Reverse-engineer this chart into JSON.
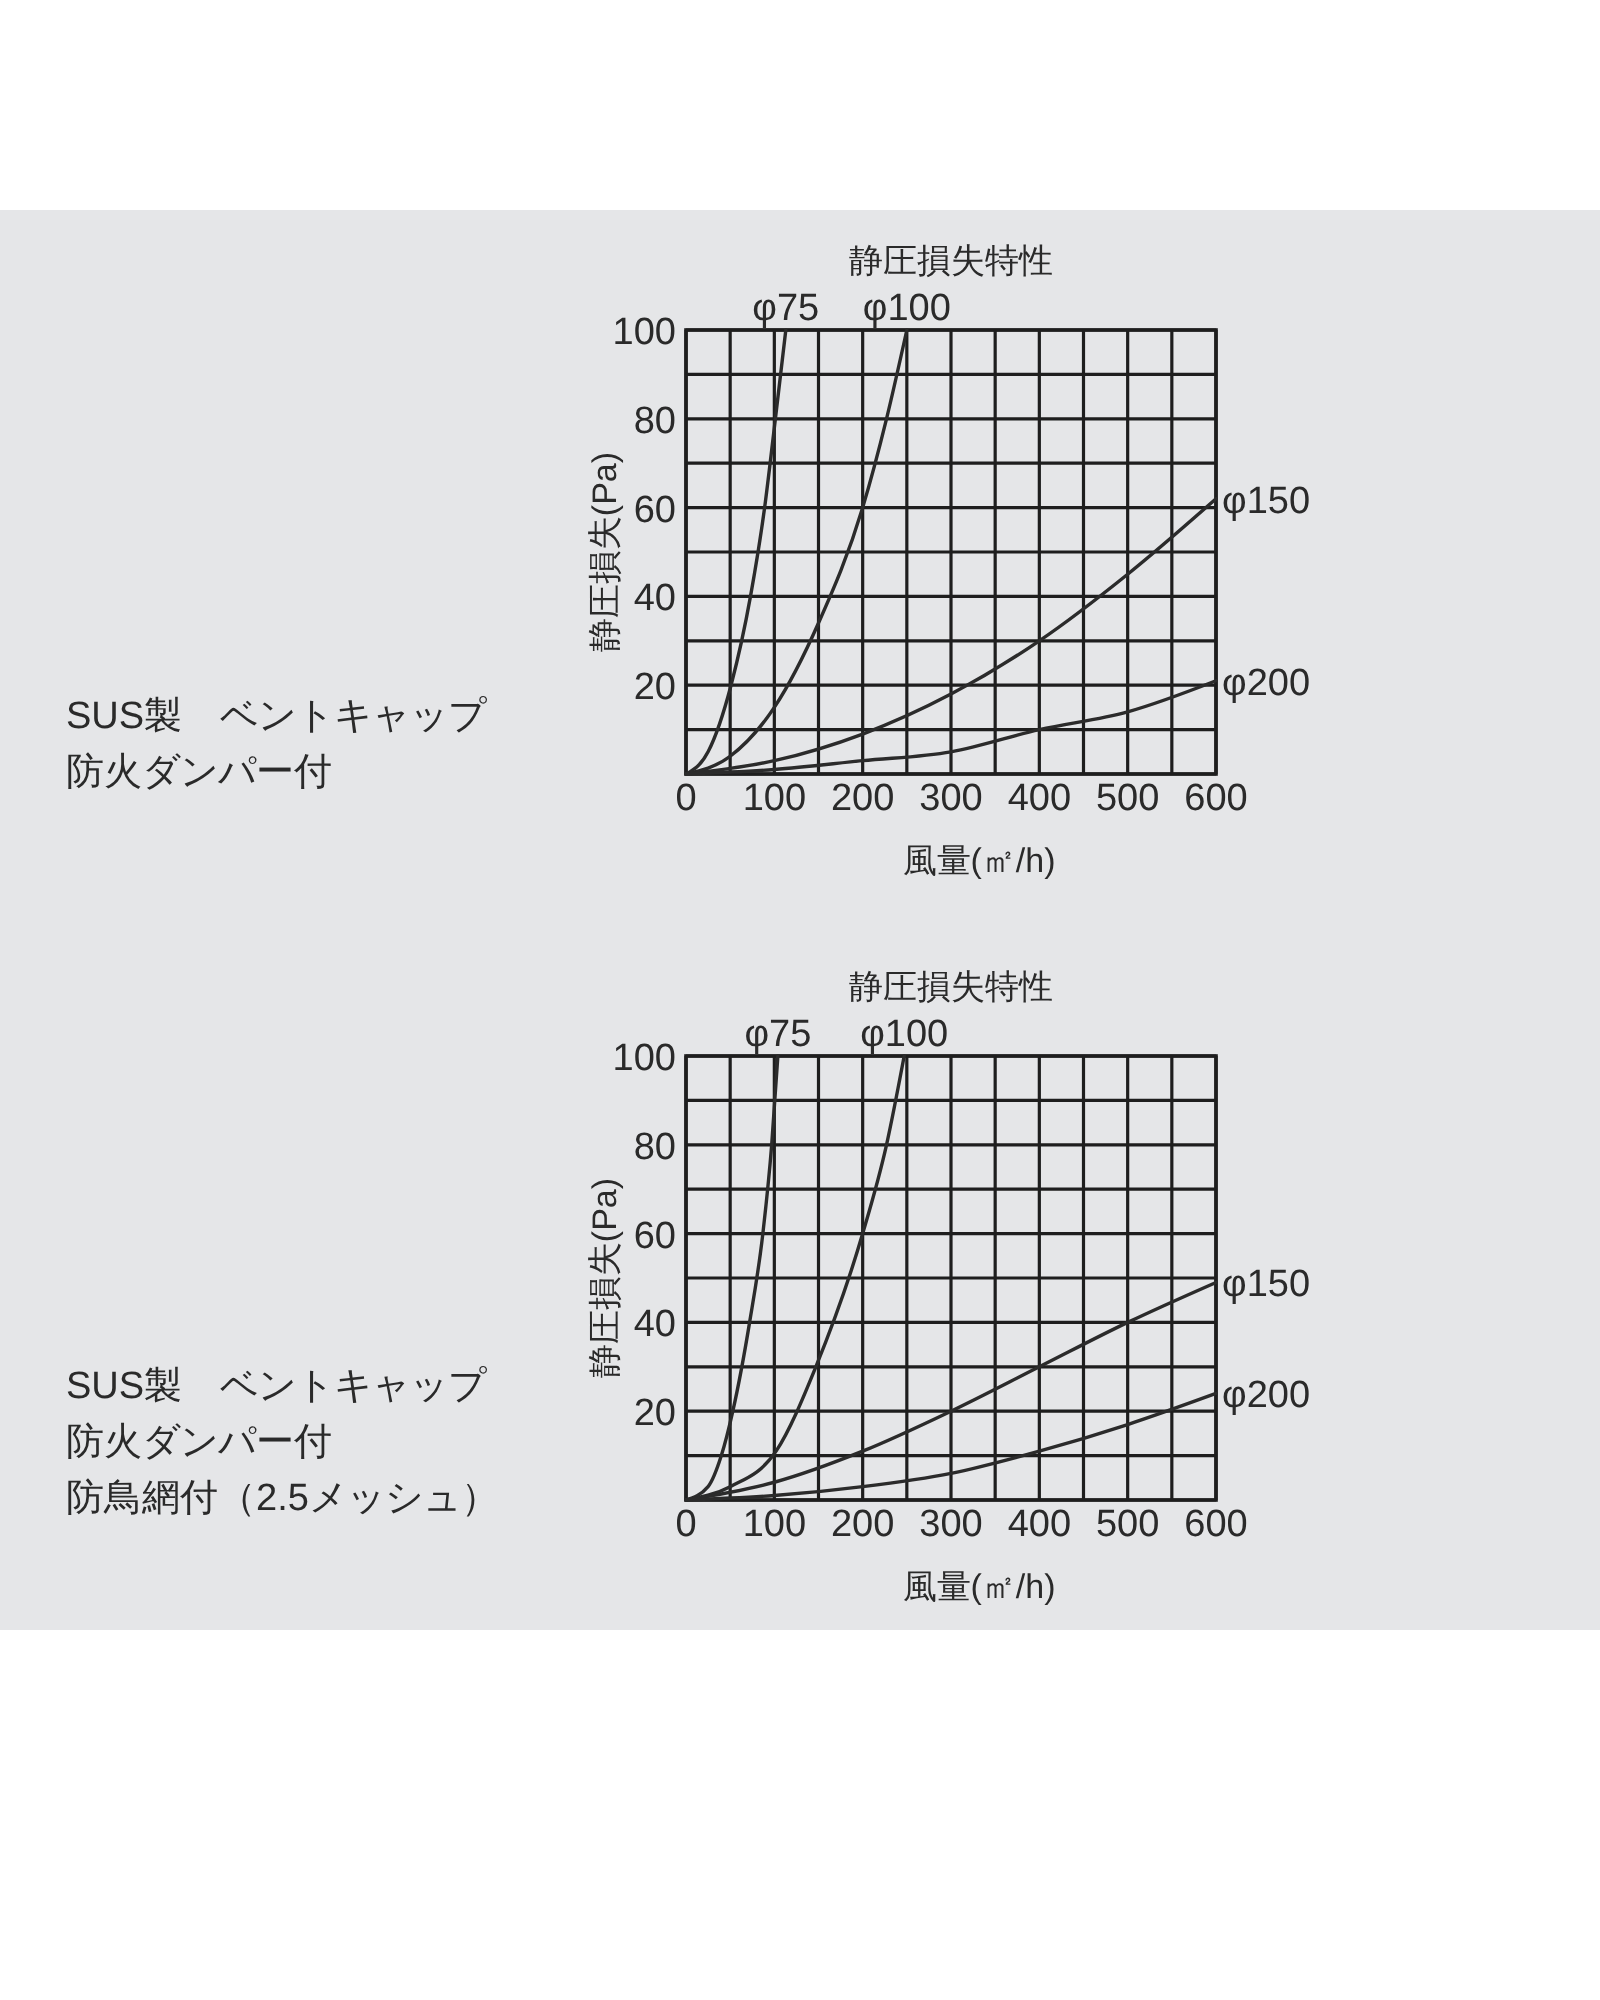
{
  "chart_data": [
    {
      "type": "line",
      "title": "静圧損失特性",
      "xlabel": "風量(㎡/h)",
      "ylabel": "静圧損失(Pa)",
      "annotations": [
        "SUS製　ベントキャップ",
        "防火ダンパー付"
      ],
      "xlim": [
        0,
        600
      ],
      "ylim": [
        0,
        100
      ],
      "xticks": [
        0,
        {
          "value": 50,
          "label": null
        },
        100,
        {
          "value": 150,
          "label": null
        },
        200,
        {
          "value": 250,
          "label": null
        },
        300,
        {
          "value": 350,
          "label": null
        },
        400,
        {
          "value": 450,
          "label": null
        },
        500,
        {
          "value": 550,
          "label": null
        },
        600
      ],
      "yticks": [
        {
          "value": 0,
          "label": null
        },
        {
          "value": 10,
          "label": null
        },
        20,
        {
          "value": 30,
          "label": null
        },
        40,
        {
          "value": 50,
          "label": null
        },
        60,
        {
          "value": 70,
          "label": null
        },
        80,
        {
          "value": 90,
          "label": null
        },
        100
      ],
      "grid": true,
      "series": [
        {
          "name": "φ75",
          "color": "#2b2b2b",
          "x": [
            0,
            25,
            51,
            73,
            89,
            100,
            113
          ],
          "values": [
            0,
            5,
            20,
            40,
            60,
            78,
            100
          ]
        },
        {
          "name": "φ100",
          "color": "#2b2b2b",
          "x": [
            0,
            50,
            100,
            150,
            200,
            227,
            250
          ],
          "values": [
            0,
            4,
            15,
            34,
            60,
            80,
            100
          ]
        },
        {
          "name": "φ150",
          "color": "#2b2b2b",
          "x": [
            0,
            100,
            200,
            300,
            400,
            500,
            600
          ],
          "values": [
            0,
            3,
            9,
            18,
            30,
            45,
            62
          ]
        },
        {
          "name": "φ200",
          "color": "#2b2b2b",
          "x": [
            0,
            100,
            200,
            300,
            400,
            500,
            600
          ],
          "values": [
            0,
            1,
            3,
            5,
            10,
            14,
            21
          ]
        }
      ]
    },
    {
      "type": "line",
      "title": "静圧損失特性",
      "xlabel": "風量(㎡/h)",
      "ylabel": "静圧損失(Pa)",
      "annotations": [
        "SUS製　ベントキャップ",
        "防火ダンパー付",
        "防鳥網付（2.5メッシュ）"
      ],
      "xlim": [
        0,
        600
      ],
      "ylim": [
        0,
        100
      ],
      "xticks": [
        0,
        {
          "value": 50,
          "label": null
        },
        100,
        {
          "value": 150,
          "label": null
        },
        200,
        {
          "value": 250,
          "label": null
        },
        300,
        {
          "value": 350,
          "label": null
        },
        400,
        {
          "value": 450,
          "label": null
        },
        500,
        {
          "value": 550,
          "label": null
        },
        600
      ],
      "yticks": [
        {
          "value": 0,
          "label": null
        },
        {
          "value": 10,
          "label": null
        },
        20,
        {
          "value": 30,
          "label": null
        },
        40,
        {
          "value": 50,
          "label": null
        },
        60,
        {
          "value": 70,
          "label": null
        },
        80,
        {
          "value": 90,
          "label": null
        },
        100
      ],
      "grid": true,
      "series": [
        {
          "name": "φ75",
          "color": "#2b2b2b",
          "x": [
            0,
            25,
            40,
            53,
            72,
            87,
            97,
            104
          ],
          "values": [
            0,
            3,
            10,
            20,
            40,
            60,
            80,
            100
          ]
        },
        {
          "name": "φ100",
          "color": "#2b2b2b",
          "x": [
            0,
            50,
            102,
            147,
            200,
            227,
            247
          ],
          "values": [
            0,
            3,
            11,
            30,
            60,
            80,
            100
          ]
        },
        {
          "name": "φ150",
          "color": "#2b2b2b",
          "x": [
            0,
            100,
            200,
            300,
            400,
            500,
            600
          ],
          "values": [
            0,
            4,
            11,
            20,
            30,
            40,
            49
          ]
        },
        {
          "name": "φ200",
          "color": "#2b2b2b",
          "x": [
            0,
            100,
            200,
            300,
            400,
            500,
            600
          ],
          "values": [
            0,
            1,
            3,
            6,
            11,
            17,
            24
          ]
        }
      ]
    }
  ]
}
